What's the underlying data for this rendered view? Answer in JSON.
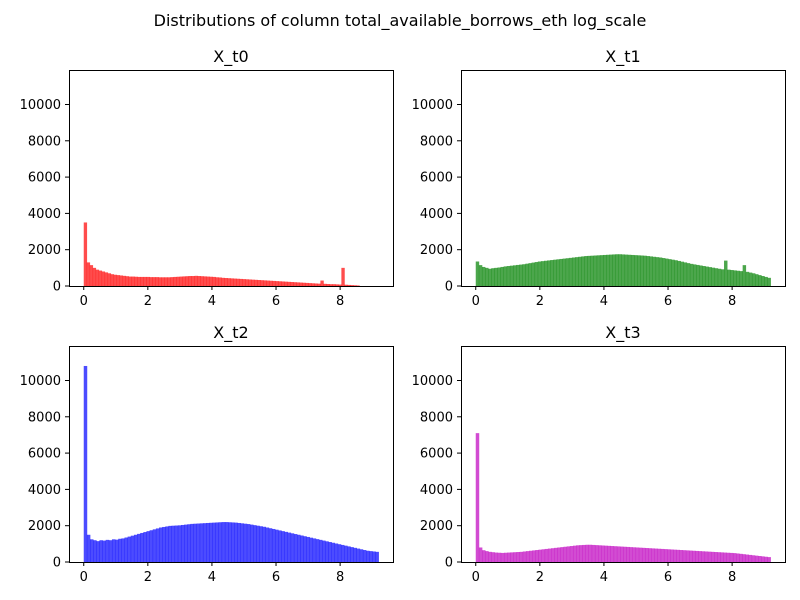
{
  "chart_data": {
    "type": "bar",
    "suptitle": "Distributions of column total_available_borrows_eth log_scale",
    "xlim": [
      -0.46,
      9.65
    ],
    "ylim": [
      0,
      11900
    ],
    "xticks": [
      0,
      2,
      4,
      6,
      8
    ],
    "yticks": [
      0,
      2000,
      4000,
      6000,
      8000,
      10000
    ],
    "subplots": [
      {
        "title": "X_t0",
        "color": "#ff0000",
        "x_range": [
          0,
          8.6
        ],
        "values": [
          3500,
          1300,
          1150,
          1000,
          900,
          850,
          800,
          750,
          700,
          650,
          620,
          600,
          580,
          560,
          540,
          520,
          520,
          510,
          500,
          500,
          500,
          500,
          490,
          490,
          490,
          480,
          480,
          480,
          480,
          490,
          500,
          510,
          520,
          530,
          540,
          550,
          550,
          560,
          550,
          540,
          530,
          520,
          510,
          500,
          480,
          470,
          450,
          440,
          430,
          420,
          410,
          400,
          390,
          380,
          370,
          360,
          350,
          340,
          330,
          320,
          310,
          300,
          290,
          280,
          270,
          260,
          250,
          240,
          230,
          220,
          210,
          200,
          190,
          180,
          170,
          160,
          150,
          140,
          130,
          300,
          120,
          110,
          100,
          100,
          90,
          80,
          1000,
          70,
          60,
          50,
          40,
          30
        ]
      },
      {
        "title": "X_t1",
        "color": "#008000",
        "x_range": [
          0,
          9.2
        ],
        "values": [
          1350,
          1150,
          1050,
          1000,
          950,
          980,
          1000,
          1020,
          1050,
          1080,
          1100,
          1120,
          1140,
          1160,
          1180,
          1200,
          1230,
          1260,
          1290,
          1320,
          1350,
          1370,
          1390,
          1410,
          1430,
          1450,
          1470,
          1490,
          1510,
          1530,
          1550,
          1570,
          1590,
          1610,
          1630,
          1650,
          1660,
          1670,
          1680,
          1690,
          1700,
          1710,
          1720,
          1730,
          1740,
          1750,
          1750,
          1740,
          1730,
          1720,
          1710,
          1700,
          1690,
          1680,
          1670,
          1650,
          1630,
          1610,
          1590,
          1570,
          1540,
          1510,
          1480,
          1450,
          1420,
          1380,
          1340,
          1300,
          1260,
          1220,
          1190,
          1160,
          1130,
          1100,
          1070,
          1040,
          1010,
          980,
          950,
          920,
          1400,
          900,
          880,
          860,
          840,
          820,
          1150,
          780,
          740,
          700,
          650,
          600,
          550,
          500,
          450
        ]
      },
      {
        "title": "X_t2",
        "color": "#0000ff",
        "x_range": [
          0,
          9.2
        ],
        "values": [
          10800,
          1500,
          1250,
          1200,
          1150,
          1200,
          1180,
          1220,
          1200,
          1250,
          1230,
          1280,
          1300,
          1350,
          1400,
          1450,
          1500,
          1550,
          1600,
          1650,
          1700,
          1750,
          1800,
          1850,
          1900,
          1930,
          1960,
          1990,
          2000,
          2010,
          2020,
          2040,
          2060,
          2080,
          2100,
          2110,
          2120,
          2130,
          2140,
          2150,
          2160,
          2170,
          2180,
          2190,
          2200,
          2200,
          2190,
          2180,
          2170,
          2150,
          2130,
          2110,
          2090,
          2060,
          2030,
          2000,
          1970,
          1940,
          1900,
          1860,
          1820,
          1780,
          1740,
          1700,
          1660,
          1620,
          1580,
          1540,
          1500,
          1460,
          1420,
          1380,
          1340,
          1300,
          1260,
          1220,
          1180,
          1140,
          1100,
          1060,
          1020,
          980,
          940,
          900,
          860,
          820,
          780,
          740,
          700,
          660,
          620,
          600,
          580,
          560
        ]
      },
      {
        "title": "X_t3",
        "color": "#bf00bf",
        "x_range": [
          0,
          9.2
        ],
        "values": [
          7100,
          800,
          650,
          600,
          560,
          540,
          520,
          510,
          500,
          510,
          520,
          530,
          540,
          550,
          560,
          580,
          600,
          620,
          640,
          660,
          680,
          700,
          720,
          740,
          760,
          780,
          800,
          820,
          840,
          860,
          880,
          900,
          920,
          930,
          940,
          950,
          950,
          940,
          930,
          920,
          910,
          900,
          890,
          880,
          870,
          860,
          850,
          840,
          830,
          820,
          810,
          800,
          790,
          780,
          770,
          760,
          750,
          740,
          730,
          720,
          710,
          700,
          690,
          680,
          670,
          660,
          650,
          640,
          630,
          620,
          610,
          600,
          590,
          580,
          570,
          560,
          550,
          540,
          530,
          520,
          510,
          500,
          490,
          470,
          450,
          430,
          410,
          390,
          370,
          350,
          330,
          310,
          290,
          270
        ]
      }
    ]
  }
}
